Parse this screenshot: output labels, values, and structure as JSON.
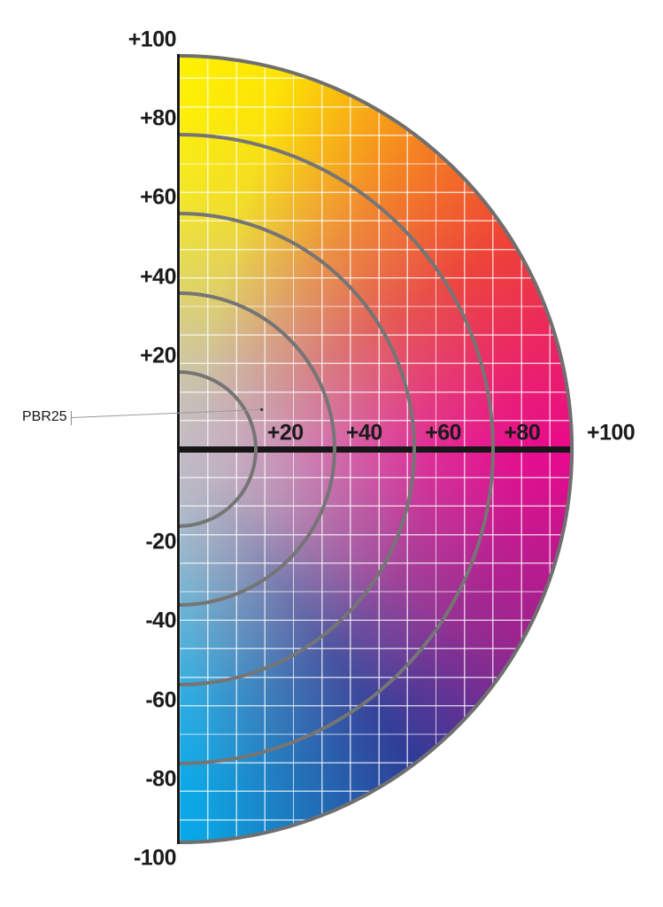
{
  "page": {
    "background": "#FFFFFF"
  },
  "annotation": {
    "label": "PBR25"
  },
  "chart_data": {
    "type": "heatmap",
    "title": "",
    "description_of_field": "right half of an a*b* color wheel: yellow at top, orange/red upper right, magenta at right, purple/indigo lower right, cyan-blue at bottom, neutral gray at center",
    "x_axis": {
      "min": 0,
      "max": 100,
      "ticks": [
        {
          "value": 20,
          "label": "+20"
        },
        {
          "value": 40,
          "label": "+40"
        },
        {
          "value": 60,
          "label": "+60"
        },
        {
          "value": 80,
          "label": "+80"
        },
        {
          "value": 100,
          "label": "+100"
        }
      ]
    },
    "y_axis": {
      "min": -100,
      "max": 100,
      "ticks": [
        {
          "value": 100,
          "label": "+100"
        },
        {
          "value": 80,
          "label": "+80"
        },
        {
          "value": 60,
          "label": "+60"
        },
        {
          "value": 40,
          "label": "+40"
        },
        {
          "value": 20,
          "label": "+20"
        },
        {
          "value": -20,
          "label": "-20"
        },
        {
          "value": -40,
          "label": "-40"
        },
        {
          "value": -60,
          "label": "-60"
        },
        {
          "value": -80,
          "label": "-80"
        },
        {
          "value": -100,
          "label": "-100"
        }
      ]
    },
    "chroma_rings": [
      20,
      40,
      60,
      80,
      100
    ],
    "annotations": [
      {
        "label": "PBR25",
        "x": 21,
        "y": 10
      }
    ],
    "hue_wheel_colors": [
      {
        "angle_deg_from_top": 0,
        "hex": "#FFF200"
      },
      {
        "angle_deg_from_top": 15,
        "hex": "#FDE403"
      },
      {
        "angle_deg_from_top": 38,
        "hex": "#F58220"
      },
      {
        "angle_deg_from_top": 58,
        "hex": "#EE4036"
      },
      {
        "angle_deg_from_top": 90,
        "hex": "#E9088C"
      },
      {
        "angle_deg_from_top": 122,
        "hex": "#93278F"
      },
      {
        "angle_deg_from_top": 143,
        "hex": "#2E3B97"
      },
      {
        "angle_deg_from_top": 161,
        "hex": "#1E73BA"
      },
      {
        "angle_deg_from_top": 176,
        "hex": "#0AA3E2"
      },
      {
        "angle_deg_from_top": 180,
        "hex": "#04A9EA"
      }
    ],
    "center_color": "#C3BCC5",
    "ring_color": "#757575",
    "rim_color": "#6F6F6F",
    "axis_color": "#161616",
    "grid_color": "#FFFFFF",
    "legend_position": "none",
    "grid": "on"
  }
}
